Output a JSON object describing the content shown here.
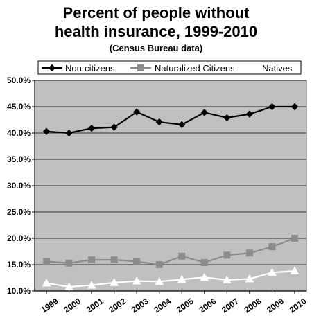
{
  "chart_data": {
    "type": "line",
    "title_lines": [
      "Percent of people without",
      "health insurance, 1999-2010"
    ],
    "subtitle": "(Census Bureau data)",
    "xlabel": "",
    "ylabel": "",
    "categories": [
      "1999",
      "2000",
      "2001",
      "2002",
      "2003",
      "2004",
      "2005",
      "2006",
      "2007",
      "2008",
      "2009",
      "2010"
    ],
    "ylim": [
      10,
      50
    ],
    "y_ticks": [
      "10.0%",
      "15.0%",
      "20.0%",
      "25.0%",
      "30.0%",
      "35.0%",
      "40.0%",
      "45.0%",
      "50.0%"
    ],
    "grid": true,
    "legend_position": "top",
    "plot_background": "#c0c0c0",
    "series": [
      {
        "name": "Non-citizens",
        "color": "#000000",
        "marker": "diamond",
        "values": [
          40.3,
          40.0,
          40.9,
          41.1,
          44.0,
          42.1,
          41.6,
          43.9,
          42.9,
          43.6,
          45.0,
          45.0
        ]
      },
      {
        "name": "Naturalized Citizens",
        "color": "#8c8c8c",
        "marker": "square",
        "values": [
          15.6,
          15.3,
          15.9,
          15.9,
          15.6,
          15.0,
          16.6,
          15.4,
          16.8,
          17.2,
          18.4,
          20.0
        ]
      },
      {
        "name": "Natives",
        "color": "#ffffff",
        "marker": "triangle",
        "values": [
          11.5,
          10.8,
          11.1,
          11.6,
          11.9,
          11.8,
          12.2,
          12.6,
          12.1,
          12.3,
          13.5,
          13.8
        ]
      }
    ]
  }
}
